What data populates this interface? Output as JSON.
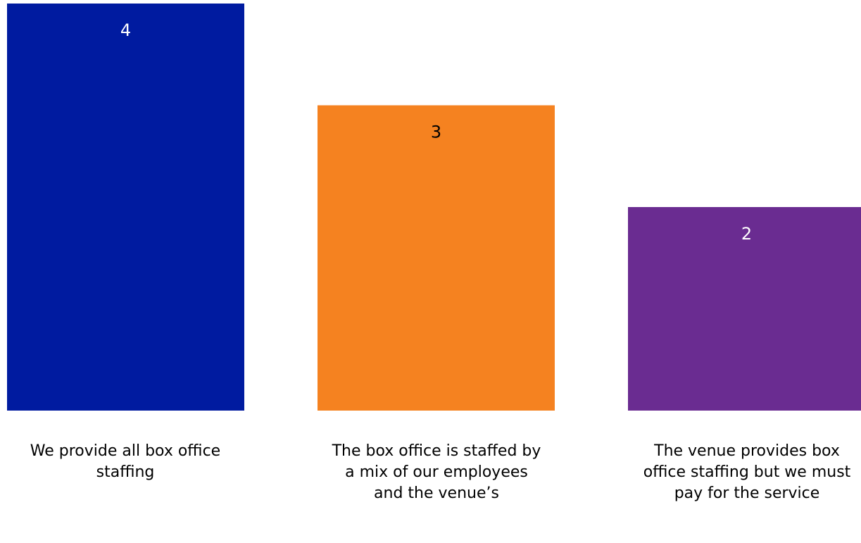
{
  "chart_data": {
    "type": "bar",
    "categories": [
      "We provide all box office staffing",
      "The box office is staffed by a mix of our employees and the venue’s",
      "The venue provides box office staffing but we must pay for the service"
    ],
    "values": [
      4,
      3,
      2
    ],
    "value_labels": [
      "4",
      "3",
      "2"
    ],
    "colors": [
      "#001ba0",
      "#f58220",
      "#6a2c91"
    ],
    "value_label_colors": [
      "#ffffff",
      "#000000",
      "#ffffff"
    ],
    "ylim": [
      0,
      4
    ],
    "grid": false,
    "legend": "none"
  }
}
